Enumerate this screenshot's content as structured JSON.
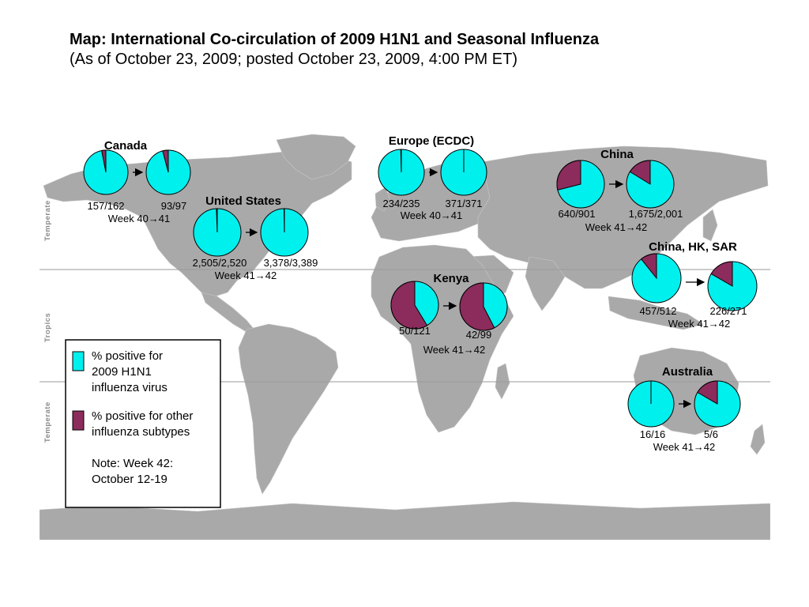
{
  "title": "Map: International Co-circulation of 2009 H1N1 and Seasonal Influenza",
  "subtitle": "(As of October 23, 2009; posted October 23, 2009, 4:00 PM ET)",
  "colors": {
    "h1n1": "#00f0ee",
    "other": "#8c2c5c",
    "land": "#a9a9a9",
    "ocean": "#ffffff",
    "band_line": "#9a9a9a"
  },
  "bands": [
    "Temperate",
    "Tropics",
    "Temperate"
  ],
  "legend": {
    "h1n1_label_lines": [
      "% positive for",
      "2009 H1N1",
      "influenza virus"
    ],
    "other_label_lines": [
      "% positive for other",
      "influenza subtypes"
    ],
    "note_lines": [
      "Note: Week 42:",
      "October 12-19"
    ]
  },
  "regions": [
    {
      "name": "Canada",
      "week": "Week 40→41",
      "pies": [
        {
          "label": "157/162",
          "positive": 157,
          "total": 162
        },
        {
          "label": "93/97",
          "positive": 93,
          "total": 97
        }
      ]
    },
    {
      "name": "United States",
      "week": "Week 41→42",
      "pies": [
        {
          "label": "2,505/2,520",
          "positive": 2505,
          "total": 2520
        },
        {
          "label": "3,378/3,389",
          "positive": 3378,
          "total": 3389
        }
      ]
    },
    {
      "name": "Europe (ECDC)",
      "week": "Week 40→41",
      "pies": [
        {
          "label": "234/235",
          "positive": 234,
          "total": 235
        },
        {
          "label": "371/371",
          "positive": 371,
          "total": 371
        }
      ]
    },
    {
      "name": "China",
      "week": "Week 41→42",
      "pies": [
        {
          "label": "640/901",
          "positive": 640,
          "total": 901
        },
        {
          "label": "1,675/2,001",
          "positive": 1675,
          "total": 2001
        }
      ]
    },
    {
      "name": "China, HK, SAR",
      "week": "Week 41→42",
      "pies": [
        {
          "label": "457/512",
          "positive": 457,
          "total": 512
        },
        {
          "label": "226/271",
          "positive": 226,
          "total": 271
        }
      ]
    },
    {
      "name": "Kenya",
      "week": "Week 41→42",
      "pies": [
        {
          "label": "50/121",
          "positive": 50,
          "total": 121
        },
        {
          "label": "42/99",
          "positive": 42,
          "total": 99
        }
      ]
    },
    {
      "name": "Australia",
      "week": "Week 41→42",
      "pies": [
        {
          "label": "16/16",
          "positive": 16,
          "total": 16
        },
        {
          "label": "5/6",
          "positive": 5,
          "total": 6
        }
      ]
    }
  ]
}
